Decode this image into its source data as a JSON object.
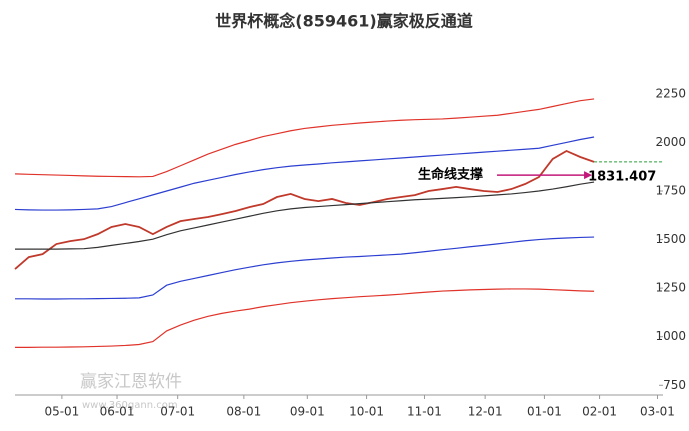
{
  "chart_data": {
    "type": "line",
    "title": "世界杯概念(859461)赢家极反通道",
    "xlim": [
      0,
      47
    ],
    "xticks": [
      {
        "value": 3.4,
        "label": "05-01"
      },
      {
        "value": 7.4,
        "label": "06-01"
      },
      {
        "value": 11.8,
        "label": "07-01"
      },
      {
        "value": 16.6,
        "label": "08-01"
      },
      {
        "value": 21.2,
        "label": "09-01"
      },
      {
        "value": 25.5,
        "label": "10-01"
      },
      {
        "value": 29.7,
        "label": "11-01"
      },
      {
        "value": 34.1,
        "label": "12-01"
      },
      {
        "value": 38.4,
        "label": "01-01"
      },
      {
        "value": 42.4,
        "label": "02-01"
      },
      {
        "value": 46.6,
        "label": "03-01"
      }
    ],
    "ylim": [
      700,
      2450
    ],
    "yticks": [
      750,
      1000,
      1250,
      1500,
      1750,
      2000,
      2250
    ],
    "grid": false,
    "series": [
      {
        "color": "#c0392b",
        "values": [
          1348,
          1410,
          1425,
          1477,
          1492,
          1502,
          1528,
          1565,
          1580,
          1565,
          1528,
          1565,
          1595,
          1606,
          1616,
          1631,
          1647,
          1667,
          1683,
          1719,
          1735,
          1709,
          1698,
          1709,
          1688,
          1678,
          1693,
          1709,
          1719,
          1729,
          1750,
          1760,
          1771,
          1760,
          1750,
          1745,
          1760,
          1786,
          1822,
          1915,
          1956,
          1925,
          1900
        ]
      },
      {
        "color": "#333333",
        "values": [
          1451,
          1451,
          1451,
          1451,
          1452,
          1453,
          1460,
          1470,
          1480,
          1490,
          1502,
          1525,
          1545,
          1560,
          1575,
          1590,
          1605,
          1620,
          1635,
          1648,
          1658,
          1665,
          1670,
          1675,
          1680,
          1685,
          1690,
          1695,
          1700,
          1705,
          1708,
          1712,
          1716,
          1720,
          1725,
          1730,
          1735,
          1742,
          1750,
          1760,
          1772,
          1785,
          1796
        ]
      },
      {
        "color": "#2c3fd1",
        "values": [
          1655,
          1653,
          1652,
          1652,
          1653,
          1655,
          1658,
          1670,
          1690,
          1710,
          1730,
          1750,
          1770,
          1790,
          1805,
          1820,
          1835,
          1848,
          1860,
          1870,
          1878,
          1884,
          1889,
          1895,
          1900,
          1905,
          1910,
          1915,
          1920,
          1925,
          1930,
          1935,
          1940,
          1945,
          1950,
          1955,
          1960,
          1965,
          1970,
          1985,
          2000,
          2015,
          2028
        ]
      },
      {
        "color": "#2c3fd1",
        "values": [
          1195,
          1195,
          1194,
          1194,
          1195,
          1195,
          1196,
          1197,
          1198,
          1200,
          1215,
          1265,
          1285,
          1300,
          1315,
          1330,
          1345,
          1358,
          1370,
          1380,
          1388,
          1395,
          1400,
          1405,
          1410,
          1413,
          1417,
          1421,
          1425,
          1432,
          1440,
          1448,
          1455,
          1463,
          1470,
          1478,
          1486,
          1494,
          1500,
          1505,
          1508,
          1511,
          1513
        ]
      },
      {
        "color": "#e0332a",
        "values": [
          1838,
          1836,
          1834,
          1832,
          1830,
          1828,
          1826,
          1825,
          1824,
          1823,
          1825,
          1850,
          1880,
          1910,
          1940,
          1965,
          1990,
          2010,
          2030,
          2045,
          2060,
          2072,
          2080,
          2088,
          2094,
          2100,
          2105,
          2110,
          2114,
          2117,
          2119,
          2121,
          2125,
          2130,
          2135,
          2140,
          2150,
          2160,
          2170,
          2185,
          2200,
          2215,
          2224
        ]
      },
      {
        "color": "#e0332a",
        "values": [
          945,
          945,
          946,
          946,
          947,
          948,
          950,
          952,
          955,
          960,
          975,
          1030,
          1060,
          1085,
          1105,
          1120,
          1132,
          1142,
          1155,
          1165,
          1175,
          1183,
          1190,
          1196,
          1201,
          1206,
          1210,
          1214,
          1219,
          1225,
          1230,
          1235,
          1238,
          1241,
          1243,
          1245,
          1246,
          1246,
          1245,
          1242,
          1239,
          1236,
          1234
        ]
      }
    ],
    "support": {
      "label": "生命线支撑",
      "value": 1831.407
    },
    "watermark": [
      "赢家江恩软件",
      "www.360gann.com"
    ]
  }
}
